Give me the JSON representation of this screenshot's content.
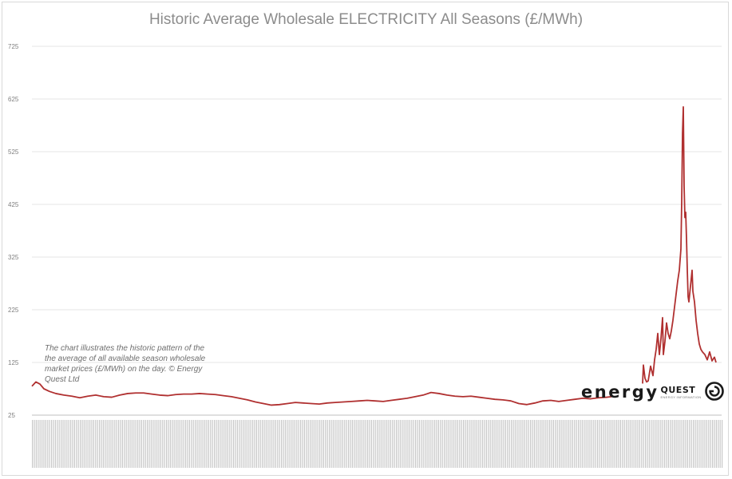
{
  "chart_data": {
    "type": "line",
    "title": "Historic Average Wholesale ELECTRICITY All Seasons (£/MWh)",
    "xlabel": "",
    "ylabel": "",
    "yticks": [
      25,
      125,
      225,
      325,
      425,
      525,
      625,
      725
    ],
    "ylim": [
      25,
      725
    ],
    "grid": true,
    "series": [
      {
        "name": "",
        "color": "#b03030",
        "x": [
          0,
          5,
          10,
          15,
          22,
          30,
          40,
          50,
          60,
          70,
          80,
          90,
          100,
          110,
          120,
          130,
          140,
          150,
          160,
          170,
          180,
          190,
          200,
          210,
          220,
          230,
          240,
          250,
          260,
          270,
          280,
          290,
          300,
          310,
          320,
          330,
          340,
          350,
          360,
          370,
          380,
          390,
          400,
          410,
          420,
          430,
          440,
          450,
          460,
          470,
          480,
          490,
          500,
          510,
          520,
          530,
          540,
          550,
          560,
          570,
          580,
          590,
          600,
          610,
          620,
          630,
          640,
          650,
          660,
          670,
          680,
          690,
          700,
          710,
          720,
          726
        ],
        "values": [
          80,
          88,
          84,
          75,
          70,
          66,
          63,
          61,
          58,
          61,
          63,
          60,
          59,
          63,
          66,
          67,
          67,
          65,
          63,
          62,
          64,
          65,
          65,
          66,
          65,
          64,
          62,
          60,
          57,
          54,
          50,
          47,
          44,
          45,
          47,
          49,
          48,
          47,
          46,
          48,
          49,
          50,
          51,
          52,
          53,
          52,
          51,
          53,
          55,
          57,
          60,
          63,
          68,
          66,
          63,
          61,
          60,
          61,
          59,
          57,
          55,
          54,
          52,
          47,
          45,
          48,
          52,
          53,
          51,
          53,
          55,
          57,
          56,
          58,
          59,
          60
        ]
      },
      {
        "name": "",
        "color": "#b03030",
        "x": [
          765,
          766,
          768,
          770,
          772,
          775,
          778,
          780,
          782,
          784,
          786,
          788,
          790,
          791,
          793,
          795,
          797,
          799,
          801,
          803,
          805,
          807,
          809,
          811,
          813,
          814,
          815,
          816,
          817,
          818,
          819,
          820,
          821,
          822,
          823,
          825,
          827,
          828,
          830,
          832,
          834,
          836,
          838,
          840,
          843,
          846,
          849,
          852,
          855,
          857
        ],
        "values": [
          85,
          120,
          95,
          88,
          90,
          118,
          100,
          130,
          150,
          180,
          140,
          170,
          210,
          140,
          165,
          200,
          180,
          170,
          185,
          205,
          230,
          255,
          280,
          300,
          340,
          430,
          560,
          610,
          460,
          400,
          410,
          360,
          300,
          250,
          240,
          270,
          300,
          260,
          240,
          205,
          180,
          160,
          150,
          145,
          140,
          130,
          145,
          128,
          135,
          125
        ]
      }
    ],
    "annotation": "The chart illustrates the historic pattern of the the average of all available season wholesale market prices (£/MWh) on the day. © Energy Quest Ltd",
    "logo": {
      "text_main": "energy",
      "text_quest": "QUEST",
      "tagline": "ENERGY INFORMATION",
      "colors": {
        "text": "#1a1a1a",
        "mark": "#1a1a1a"
      }
    }
  }
}
